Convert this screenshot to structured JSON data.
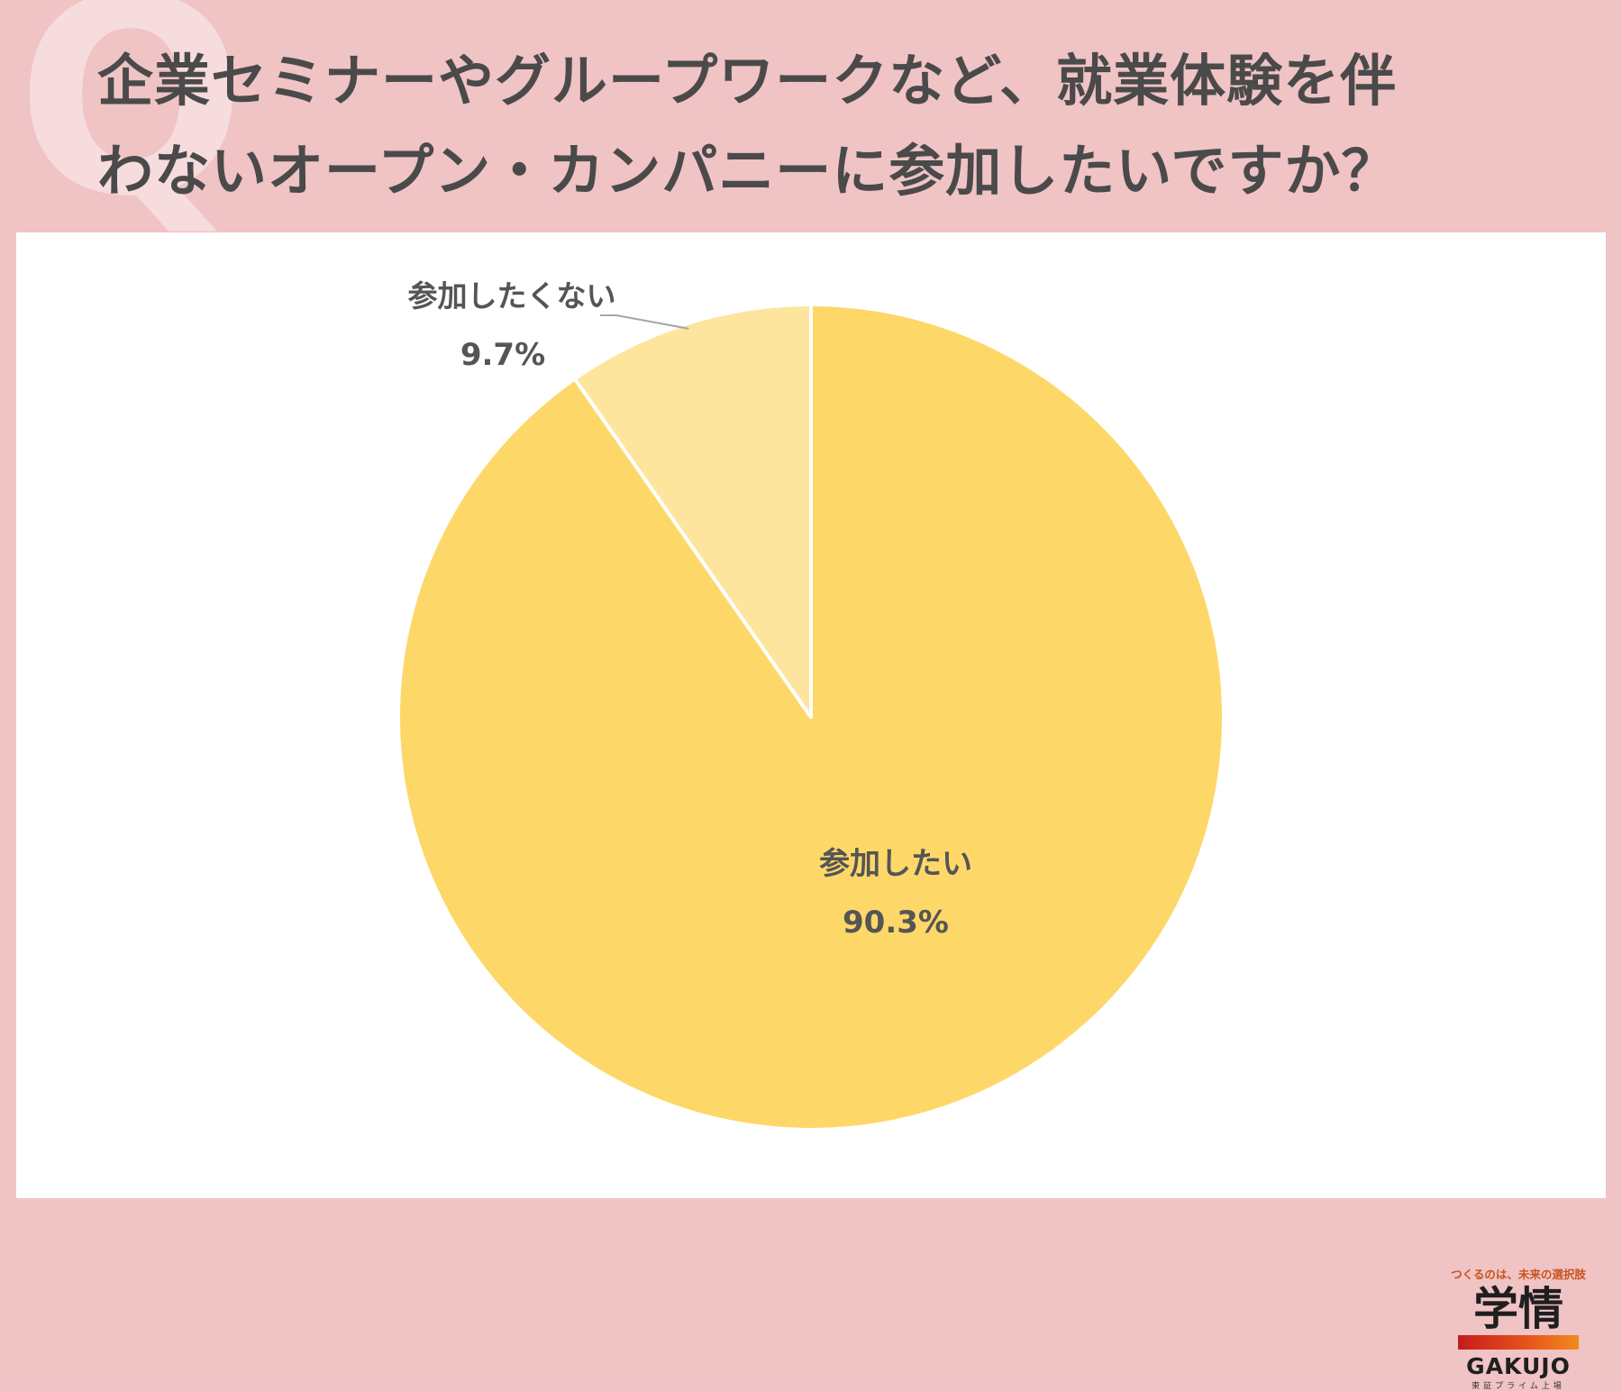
{
  "header": {
    "q_mark": "Q",
    "title_line1": "企業セミナーやグループワークなど、就業体験を伴",
    "title_line2": "わないオープン・カンパニーに参加したいですか？"
  },
  "chart_data": {
    "type": "pie",
    "title": "",
    "start_angle": "12 o'clock, clockwise",
    "slices": [
      {
        "label": "参加したい",
        "value": 90.3,
        "value_label": "90.3%",
        "color": "#fdd869"
      },
      {
        "label": "参加したくない",
        "value": 9.7,
        "value_label": "9.7%",
        "color": "#fee59e"
      }
    ],
    "legend": "none"
  },
  "logo": {
    "tagline": "つくるのは、未来の選択肢",
    "mark": "学情",
    "name": "GAKUJO",
    "sub": "東証プライム上場"
  }
}
